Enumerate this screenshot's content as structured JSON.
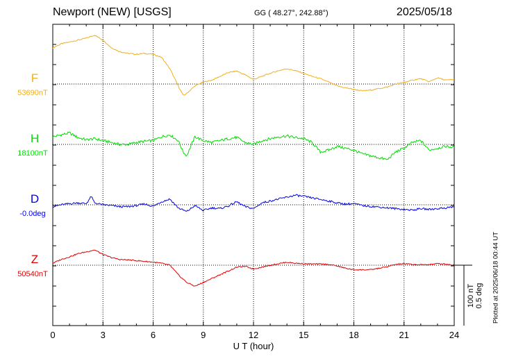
{
  "header": {
    "station": "Newport (NEW)  [USGS]",
    "coordinates": "GG ( 48.27°, 242.88°)",
    "date": "2025/05/18"
  },
  "plotted_note": "Plotted at 2025/06/18 00:44 UT",
  "scale_bar": {
    "nt": "100 nT",
    "deg": "0.5 deg"
  },
  "chart_data": {
    "type": "line",
    "xlabel": "U T (hour)",
    "xlim": [
      0,
      24
    ],
    "xticks": [
      "0",
      "3",
      "6",
      "9",
      "12",
      "15",
      "18",
      "21",
      "24"
    ],
    "grid": true,
    "y_units": "nT relative to baseline (D in deg, 0.5 deg = 100 nT)",
    "series": [
      {
        "name": "F",
        "baseline_label": "53690nT",
        "color": "#f0b020",
        "x": [
          0,
          0.5,
          1,
          1.5,
          2,
          2.5,
          3,
          3.5,
          4,
          4.5,
          5,
          5.5,
          6,
          6.5,
          7,
          7.5,
          7.8,
          8,
          8.5,
          9,
          9.5,
          10,
          10.5,
          11,
          11.5,
          12,
          12.5,
          13,
          13.5,
          14,
          14.5,
          15,
          15.5,
          16,
          16.5,
          17,
          17.5,
          18,
          18.5,
          19,
          19.5,
          20,
          20.5,
          21,
          21.5,
          22,
          22.5,
          23,
          23.5,
          24
        ],
        "values": [
          95,
          105,
          110,
          115,
          120,
          128,
          115,
          95,
          85,
          80,
          78,
          80,
          78,
          70,
          40,
          -5,
          -30,
          -25,
          -5,
          5,
          10,
          20,
          30,
          34,
          24,
          12,
          20,
          28,
          35,
          40,
          35,
          28,
          20,
          14,
          5,
          -5,
          -10,
          -14,
          -18,
          -16,
          -12,
          -8,
          0,
          4,
          10,
          14,
          6,
          16,
          10,
          12
        ]
      },
      {
        "name": "H",
        "baseline_label": "18100nT",
        "color": "#00dd00",
        "x": [
          0,
          0.5,
          1,
          1.5,
          2,
          2.5,
          3,
          3.5,
          4,
          4.5,
          5,
          5.5,
          6,
          6.5,
          7,
          7.5,
          7.8,
          8,
          8.5,
          9,
          9.5,
          10,
          10.5,
          11,
          11.5,
          12,
          12.5,
          13,
          13.5,
          14,
          14.5,
          15,
          15.5,
          16,
          16.5,
          17,
          17.5,
          18,
          18.5,
          19,
          19.5,
          20,
          20.5,
          21,
          21.5,
          22,
          22.5,
          23,
          23.5,
          24
        ],
        "values": [
          20,
          25,
          30,
          18,
          12,
          15,
          10,
          5,
          0,
          0,
          5,
          8,
          10,
          20,
          25,
          10,
          -20,
          -30,
          20,
          10,
          5,
          10,
          15,
          18,
          5,
          0,
          10,
          15,
          20,
          22,
          18,
          15,
          5,
          -20,
          -15,
          -5,
          -10,
          -15,
          -25,
          -30,
          -35,
          -40,
          -20,
          -10,
          5,
          10,
          -15,
          -10,
          -5,
          -8
        ]
      },
      {
        "name": "D",
        "baseline_label": "-0.0deg",
        "color": "#0000ee",
        "x": [
          0,
          0.5,
          1,
          1.5,
          2,
          2.3,
          2.5,
          3,
          3.5,
          4,
          4.5,
          5,
          5.5,
          6,
          6.5,
          7,
          7.5,
          8,
          8.5,
          9,
          9.5,
          10,
          10.5,
          11,
          11.5,
          12,
          12.5,
          13,
          13.5,
          14,
          14.5,
          15,
          15.5,
          16,
          16.5,
          17,
          17.5,
          18,
          18.5,
          19,
          19.5,
          20,
          20.5,
          21,
          21.5,
          22,
          22.5,
          23,
          23.5,
          24
        ],
        "values": [
          -5,
          0,
          3,
          5,
          3,
          22,
          5,
          0,
          -2,
          -5,
          -5,
          -2,
          2,
          -4,
          8,
          15,
          -8,
          -18,
          -2,
          -15,
          -8,
          -10,
          -3,
          8,
          -5,
          -10,
          5,
          10,
          15,
          20,
          25,
          22,
          18,
          14,
          10,
          5,
          2,
          3,
          -2,
          -4,
          -6,
          -8,
          -10,
          -12,
          -14,
          -10,
          -12,
          -10,
          -8,
          -5
        ]
      },
      {
        "name": "Z",
        "baseline_label": "50540nT",
        "color": "#dd0000",
        "x": [
          0,
          0.5,
          1,
          1.5,
          2,
          2.5,
          3,
          3.5,
          4,
          4.5,
          5,
          5.5,
          6,
          6.5,
          7,
          7.5,
          8,
          8.5,
          9,
          9.5,
          10,
          10.5,
          11,
          11.5,
          12,
          12.5,
          13,
          13.5,
          14,
          14.5,
          15,
          15.5,
          16,
          16.5,
          17,
          17.5,
          18,
          18.5,
          19,
          19.5,
          20,
          20.5,
          21,
          21.5,
          22,
          22.5,
          23,
          23.5,
          24
        ],
        "values": [
          5,
          15,
          22,
          30,
          35,
          40,
          28,
          20,
          15,
          14,
          12,
          10,
          8,
          5,
          0,
          -25,
          -45,
          -55,
          -45,
          -35,
          -25,
          -15,
          -5,
          -3,
          -10,
          -5,
          0,
          4,
          8,
          5,
          4,
          3,
          3,
          2,
          -2,
          -8,
          -12,
          -12,
          -12,
          -8,
          -4,
          2,
          4,
          2,
          1,
          2,
          4,
          3,
          0
        ]
      }
    ]
  }
}
